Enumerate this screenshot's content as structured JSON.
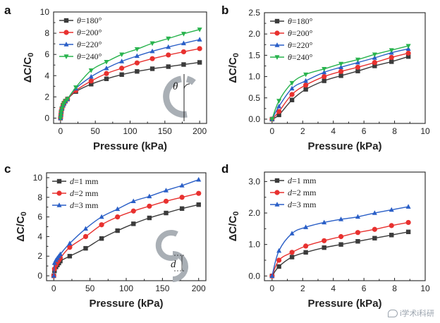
{
  "colors": {
    "series_1": "#3b3b3b",
    "series_2": "#e8312f",
    "series_3": "#2a5fc7",
    "series_4": "#28b34d",
    "inset_shape": "#a9afb5"
  },
  "watermark": {
    "text": "i学术i科研"
  },
  "chart_data": [
    {
      "panel": "a",
      "type": "line",
      "xlabel": "Pressure (kPa)",
      "ylabel": "ΔC/C0",
      "xlim": [
        -10,
        210
      ],
      "ylim": [
        -0.5,
        10
      ],
      "xticks": [
        0,
        50,
        100,
        150,
        200
      ],
      "yticks": [
        0,
        2,
        4,
        6,
        8,
        10
      ],
      "legend": "top-left",
      "legend_var": "θ",
      "inset": {
        "shape": "split-ring",
        "label": "θ"
      },
      "series": [
        {
          "name": "=180°",
          "marker": "square",
          "x": [
            0,
            0.5,
            1,
            2,
            3.5,
            5,
            7,
            10,
            22,
            44,
            66,
            88,
            110,
            132,
            155,
            177,
            200
          ],
          "y": [
            0,
            0.3,
            0.6,
            0.9,
            1.2,
            1.4,
            1.6,
            1.8,
            2.5,
            3.2,
            3.7,
            4.1,
            4.4,
            4.65,
            4.85,
            5.05,
            5.25
          ]
        },
        {
          "name": "=200°",
          "marker": "circle",
          "x": [
            0,
            0.5,
            1,
            2,
            3.5,
            5,
            7,
            10,
            22,
            44,
            66,
            88,
            110,
            132,
            155,
            177,
            200
          ],
          "y": [
            0,
            0.3,
            0.6,
            0.9,
            1.2,
            1.4,
            1.6,
            1.8,
            2.6,
            3.5,
            4.2,
            4.7,
            5.2,
            5.6,
            5.95,
            6.25,
            6.55
          ]
        },
        {
          "name": "=220°",
          "marker": "triangle-up",
          "x": [
            0,
            0.5,
            1,
            2,
            3.5,
            5,
            7,
            10,
            22,
            44,
            66,
            88,
            110,
            132,
            155,
            177,
            200
          ],
          "y": [
            0,
            0.3,
            0.6,
            0.9,
            1.2,
            1.4,
            1.6,
            1.8,
            2.8,
            3.9,
            4.7,
            5.35,
            5.85,
            6.3,
            6.7,
            7.05,
            7.4
          ]
        },
        {
          "name": "=240°",
          "marker": "triangle-down",
          "x": [
            0,
            0.5,
            1,
            2,
            3.5,
            5,
            7,
            10,
            22,
            44,
            66,
            88,
            110,
            132,
            155,
            177,
            200
          ],
          "y": [
            0,
            0.3,
            0.6,
            0.9,
            1.2,
            1.4,
            1.6,
            1.8,
            2.9,
            4.5,
            5.3,
            6.0,
            6.5,
            7.05,
            7.5,
            7.95,
            8.35
          ]
        }
      ]
    },
    {
      "panel": "b",
      "type": "line",
      "xlabel": "Pressure (kPa)",
      "ylabel": "ΔC/C0",
      "xlim": [
        -0.5,
        10
      ],
      "ylim": [
        -0.1,
        2.5
      ],
      "xticks": [
        0,
        2,
        4,
        6,
        8,
        10
      ],
      "yticks": [
        0.0,
        0.5,
        1.0,
        1.5,
        2.0,
        2.5
      ],
      "tick_decimals": 1,
      "legend": "top-left",
      "legend_var": "θ",
      "series": [
        {
          "name": "=180°",
          "marker": "square",
          "x": [
            0,
            0.45,
            1.3,
            2.2,
            3.4,
            4.5,
            5.6,
            6.7,
            7.8,
            8.9
          ],
          "y": [
            0,
            0.1,
            0.45,
            0.7,
            0.9,
            1.02,
            1.13,
            1.25,
            1.35,
            1.47
          ]
        },
        {
          "name": "=200°",
          "marker": "circle",
          "x": [
            0,
            0.45,
            1.3,
            2.2,
            3.4,
            4.5,
            5.6,
            6.7,
            7.8,
            8.9
          ],
          "y": [
            0,
            0.18,
            0.58,
            0.8,
            1.0,
            1.12,
            1.22,
            1.33,
            1.45,
            1.55
          ]
        },
        {
          "name": "=220°",
          "marker": "triangle-up",
          "x": [
            0,
            0.45,
            1.3,
            2.2,
            3.4,
            4.5,
            5.6,
            6.7,
            7.8,
            8.9
          ],
          "y": [
            0,
            0.3,
            0.72,
            0.9,
            1.1,
            1.22,
            1.33,
            1.44,
            1.56,
            1.65
          ]
        },
        {
          "name": "=240°",
          "marker": "triangle-down",
          "x": [
            0,
            0.45,
            1.3,
            2.2,
            3.4,
            4.5,
            5.6,
            6.7,
            7.8,
            8.9
          ],
          "y": [
            0,
            0.43,
            0.85,
            1.05,
            1.18,
            1.3,
            1.4,
            1.52,
            1.62,
            1.72
          ]
        }
      ]
    },
    {
      "panel": "c",
      "type": "line",
      "xlabel": "Pressure (kPa)",
      "ylabel": "ΔC/C0",
      "xlim": [
        -10,
        210
      ],
      "ylim": [
        -0.5,
        10.5
      ],
      "xticks": [
        0,
        50,
        100,
        150,
        200
      ],
      "yticks": [
        0,
        2,
        4,
        6,
        8,
        10
      ],
      "legend": "top-left",
      "legend_var": "d",
      "inset": {
        "shape": "offset-rings",
        "label": "d"
      },
      "series": [
        {
          "name": "=1 mm",
          "marker": "square",
          "x": [
            0,
            1,
            3,
            5,
            7,
            9,
            22,
            44,
            66,
            88,
            110,
            132,
            155,
            177,
            200
          ],
          "y": [
            0,
            0.5,
            0.9,
            1.1,
            1.3,
            1.5,
            2.0,
            2.8,
            3.8,
            4.6,
            5.3,
            5.9,
            6.4,
            6.85,
            7.25
          ]
        },
        {
          "name": "=2 mm",
          "marker": "circle",
          "x": [
            0,
            1,
            3,
            5,
            7,
            9,
            22,
            44,
            66,
            88,
            110,
            132,
            155,
            177,
            200
          ],
          "y": [
            0,
            0.7,
            1.1,
            1.4,
            1.6,
            1.8,
            2.9,
            4.0,
            5.2,
            6.0,
            6.6,
            7.1,
            7.6,
            8.0,
            8.4
          ]
        },
        {
          "name": "=3 mm",
          "marker": "triangle-up",
          "x": [
            0,
            1,
            3,
            5,
            7,
            9,
            22,
            44,
            66,
            88,
            110,
            132,
            155,
            177,
            200
          ],
          "y": [
            0,
            1.3,
            1.6,
            1.8,
            2.0,
            2.2,
            3.3,
            4.8,
            6.0,
            6.8,
            7.6,
            8.1,
            8.7,
            9.2,
            9.8
          ]
        }
      ]
    },
    {
      "panel": "d",
      "type": "line",
      "xlabel": "Pressure (kPa)",
      "ylabel": "ΔC/C0",
      "xlim": [
        -0.5,
        10
      ],
      "ylim": [
        -0.15,
        3.3
      ],
      "xticks": [
        0,
        2,
        4,
        6,
        8,
        10
      ],
      "yticks": [
        0.0,
        1.0,
        2.0,
        3.0
      ],
      "tick_decimals": 1,
      "legend": "top-left",
      "legend_var": "d",
      "series": [
        {
          "name": "=1 mm",
          "marker": "square",
          "x": [
            0,
            0.45,
            1.3,
            2.2,
            3.4,
            4.5,
            5.6,
            6.7,
            7.8,
            8.9
          ],
          "y": [
            0,
            0.3,
            0.6,
            0.75,
            0.9,
            1.0,
            1.1,
            1.2,
            1.3,
            1.4
          ]
        },
        {
          "name": "=2 mm",
          "marker": "circle",
          "x": [
            0,
            0.45,
            1.3,
            2.2,
            3.4,
            4.5,
            5.6,
            6.7,
            7.8,
            8.9
          ],
          "y": [
            0,
            0.5,
            0.75,
            0.95,
            1.12,
            1.25,
            1.38,
            1.48,
            1.6,
            1.7
          ]
        },
        {
          "name": "=3 mm",
          "marker": "triangle-up",
          "x": [
            0,
            0.45,
            1.3,
            2.2,
            3.4,
            4.5,
            5.6,
            6.7,
            7.8,
            8.9
          ],
          "y": [
            0,
            0.8,
            1.35,
            1.55,
            1.7,
            1.8,
            1.88,
            2.0,
            2.1,
            2.2
          ]
        }
      ]
    }
  ]
}
